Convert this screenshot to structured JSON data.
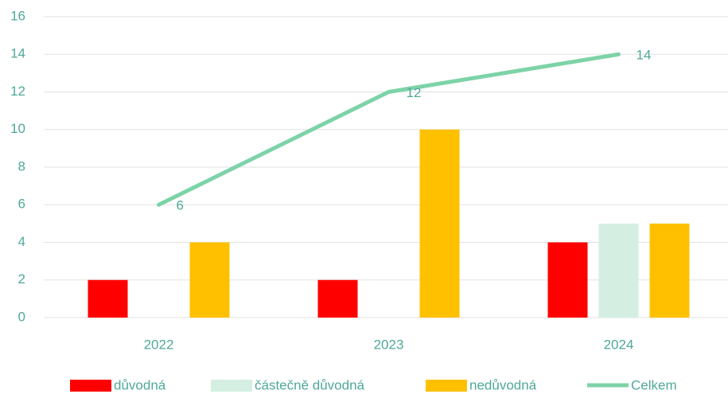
{
  "chart_data": {
    "type": "bar_line",
    "categories": [
      "2022",
      "2023",
      "2024"
    ],
    "series": [
      {
        "name": "důvodná",
        "color": "#ff0000",
        "type": "bar",
        "values": [
          2,
          2,
          4
        ]
      },
      {
        "name": "částečně důvodná",
        "color": "#d4efe2",
        "type": "bar",
        "values": [
          0,
          0,
          5
        ]
      },
      {
        "name": "nedůvodná",
        "color": "#ffc000",
        "type": "bar",
        "values": [
          4,
          10,
          5
        ]
      },
      {
        "name": "Celkem",
        "color": "#7dd3a8",
        "type": "line",
        "values": [
          6,
          12,
          14
        ]
      }
    ],
    "ylim": [
      0,
      16
    ],
    "yticks": [
      0,
      2,
      4,
      6,
      8,
      10,
      12,
      14,
      16
    ],
    "grid": true,
    "legend": "bottom"
  }
}
